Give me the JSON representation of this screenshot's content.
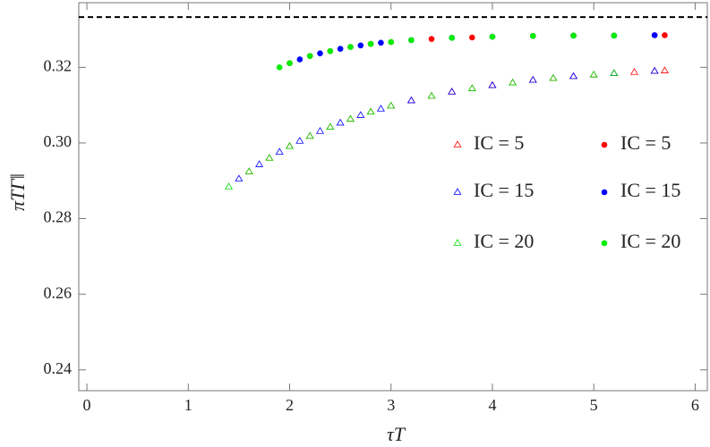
{
  "chart_data": {
    "type": "scatter",
    "x_label": "τT",
    "y_label": "πTΓ‖",
    "xlim": [
      -0.08,
      6.12
    ],
    "ylim": [
      0.2345,
      0.3371
    ],
    "xticks": [
      0,
      1,
      2,
      3,
      4,
      5,
      6
    ],
    "yticks": [
      0.24,
      0.26,
      0.28,
      {
        "value": 0.3,
        "label": "0.30"
      },
      0.32
    ],
    "hline": 0.3333,
    "series": [
      {
        "name": "IC = 5",
        "color": "#ff0000",
        "marker": "triangle",
        "x": [
          1.6,
          1.8,
          2.0,
          2.2,
          2.4,
          2.6,
          2.8,
          3.0,
          3.2,
          3.4,
          3.6,
          3.8,
          4.0,
          4.2,
          4.4,
          4.6,
          4.8,
          5.0,
          5.2,
          5.4,
          5.6,
          5.7
        ],
        "values": [
          0.2924,
          0.296,
          0.2991,
          0.3018,
          0.3042,
          0.3063,
          0.3082,
          0.3098,
          0.3112,
          0.3124,
          0.3135,
          0.3144,
          0.3152,
          0.3159,
          0.3166,
          0.3171,
          0.3176,
          0.318,
          0.3184,
          0.3187,
          0.319,
          0.3191
        ]
      },
      {
        "name": "IC = 15",
        "color": "#0000ff",
        "marker": "triangle",
        "x": [
          1.5,
          1.7,
          1.9,
          2.1,
          2.3,
          2.5,
          2.7,
          2.9,
          3.2,
          3.6,
          4.0,
          4.4,
          4.8,
          5.2,
          5.6
        ],
        "values": [
          0.2905,
          0.2943,
          0.2976,
          0.3005,
          0.3031,
          0.3053,
          0.3073,
          0.309,
          0.3112,
          0.3135,
          0.3152,
          0.3166,
          0.3176,
          0.3184,
          0.319
        ]
      },
      {
        "name": "IC = 20",
        "color": "#00e000",
        "marker": "triangle",
        "x": [
          1.4,
          1.6,
          1.8,
          2.0,
          2.2,
          2.4,
          2.6,
          2.8,
          3.0,
          3.4,
          3.8,
          4.2,
          4.6,
          5.0,
          5.2
        ],
        "values": [
          0.2884,
          0.2924,
          0.296,
          0.2991,
          0.3018,
          0.3042,
          0.3063,
          0.3082,
          0.3098,
          0.3124,
          0.3144,
          0.3159,
          0.3171,
          0.318,
          0.3184
        ]
      },
      {
        "name": "IC = 5",
        "color": "#ff0000",
        "marker": "circle",
        "x": [
          2.0,
          2.2,
          2.4,
          2.6,
          2.8,
          3.0,
          3.4,
          3.8,
          4.4,
          4.8,
          5.2,
          5.6,
          5.7
        ],
        "values": [
          0.3211,
          0.323,
          0.3243,
          0.3254,
          0.3262,
          0.3267,
          0.3275,
          0.3279,
          0.3283,
          0.3284,
          0.3284,
          0.3285,
          0.3285
        ]
      },
      {
        "name": "IC = 15",
        "color": "#0000ff",
        "marker": "circle",
        "x": [
          2.1,
          2.3,
          2.5,
          2.7,
          2.9,
          3.2,
          3.6,
          4.0,
          4.4,
          4.8,
          5.2,
          5.6
        ],
        "values": [
          0.3221,
          0.3237,
          0.3249,
          0.3258,
          0.3265,
          0.3272,
          0.3278,
          0.3281,
          0.3283,
          0.3284,
          0.3284,
          0.3285
        ]
      },
      {
        "name": "IC = 20",
        "color": "#00ee00",
        "marker": "circle",
        "x": [
          1.9,
          2.0,
          2.2,
          2.4,
          2.6,
          2.8,
          3.0,
          3.2,
          3.6,
          4.0,
          4.4,
          4.8,
          5.2
        ],
        "values": [
          0.32,
          0.3211,
          0.323,
          0.3243,
          0.3254,
          0.3262,
          0.3267,
          0.3272,
          0.3278,
          0.3281,
          0.3283,
          0.3284,
          0.3284
        ]
      }
    ]
  }
}
